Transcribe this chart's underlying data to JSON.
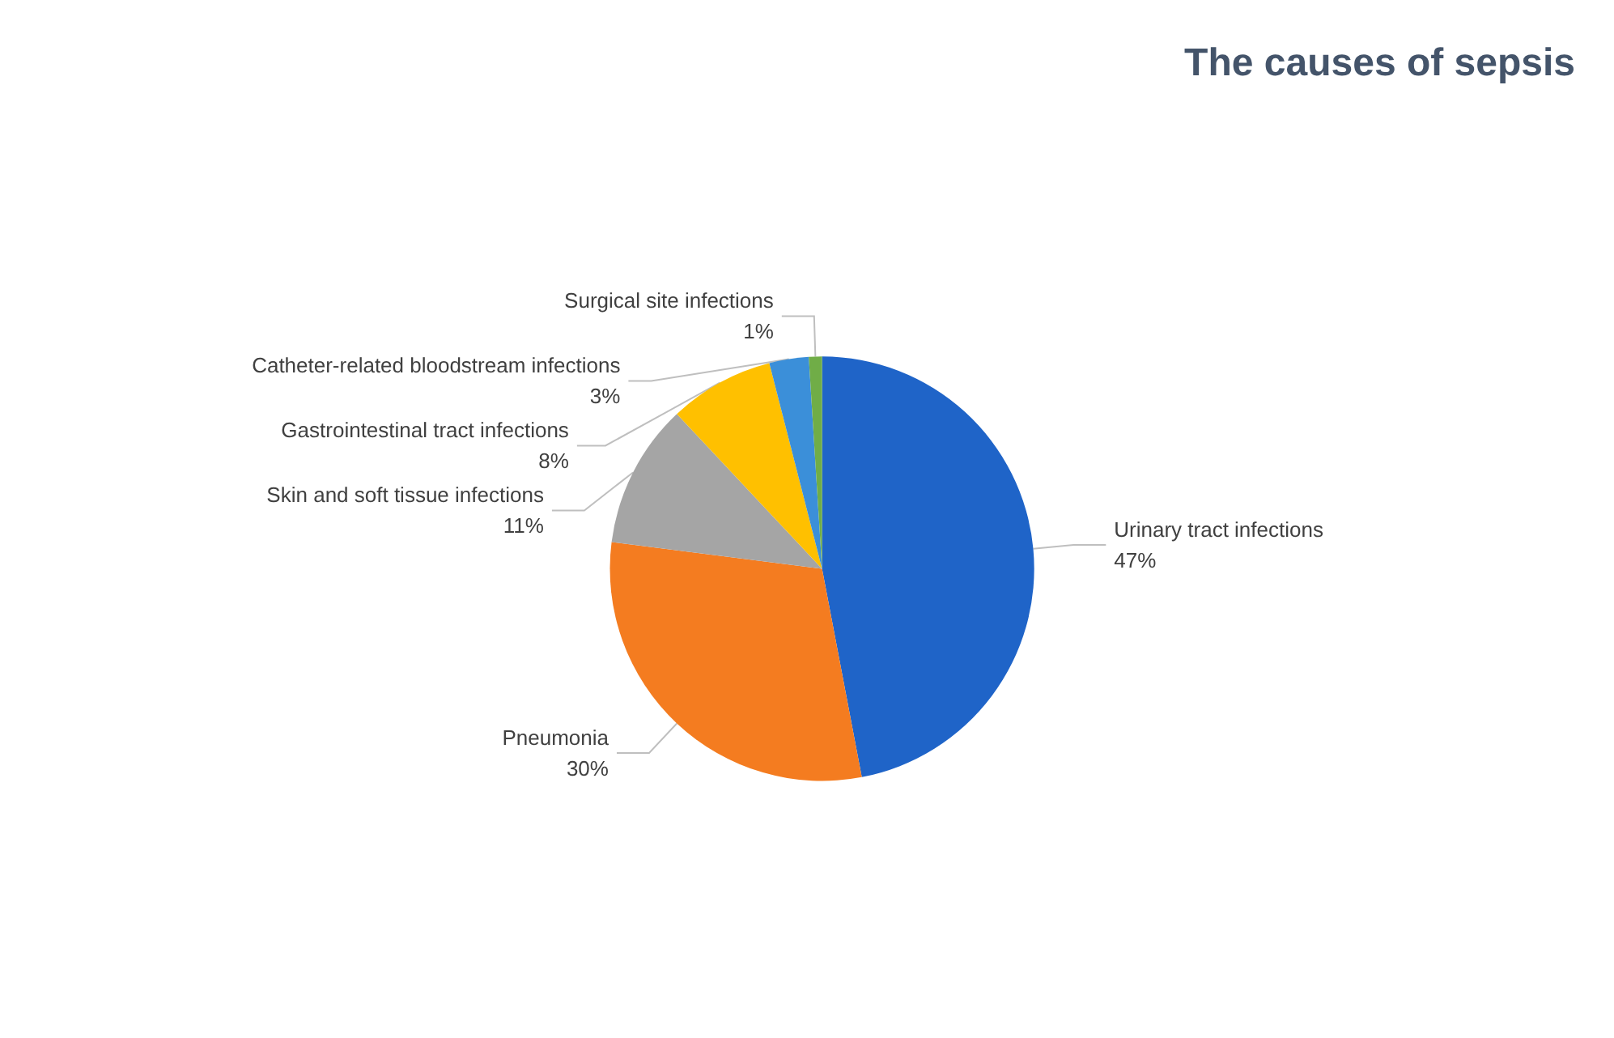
{
  "chart_data": {
    "type": "pie",
    "title": "The causes of sepsis",
    "categories": [
      "Urinary tract infections",
      "Pneumonia",
      "Skin and soft tissue infections",
      "Gastrointestinal tract infections",
      "Catheter-related bloodstream infections",
      "Surgical site infections"
    ],
    "values": [
      47,
      30,
      11,
      8,
      3,
      1
    ],
    "colors": [
      "#1f64c8",
      "#f47c20",
      "#a5a5a5",
      "#ffc000",
      "#3b8fd9",
      "#70ad47"
    ],
    "value_labels": [
      "47%",
      "30%",
      "11%",
      "8%",
      "3%",
      "1%"
    ],
    "legend": false
  }
}
